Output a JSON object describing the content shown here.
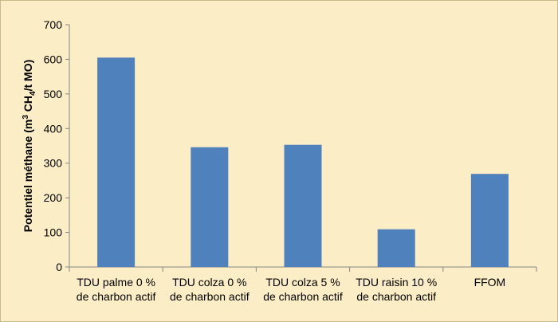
{
  "chart_data": {
    "type": "bar",
    "categories": [
      [
        "TDU palme 0 %",
        "de charbon actif"
      ],
      [
        "TDU colza 0 %",
        "de charbon actif"
      ],
      [
        "TDU colza 5 %",
        "de charbon actif"
      ],
      [
        "TDU raisin 10 %",
        "de charbon actif"
      ],
      [
        "FFOM"
      ]
    ],
    "values": [
      605,
      346,
      353,
      109,
      269
    ],
    "ylabel": {
      "prefix": "Potentiel méthane (m",
      "sup": "3",
      "mid": " CH",
      "sub": "4",
      "suffix": "/t MO)"
    },
    "ylim": [
      0,
      700
    ],
    "yticks": [
      0,
      100,
      200,
      300,
      400,
      500,
      600,
      700
    ],
    "grid": false,
    "bar_color": "#4f81bd",
    "background": "#fbedc5"
  }
}
